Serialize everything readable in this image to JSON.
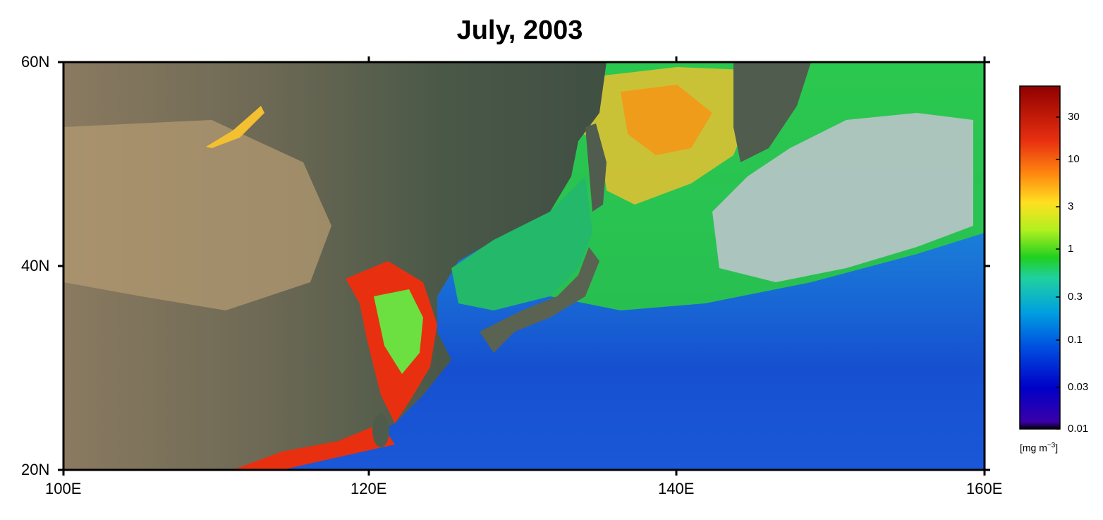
{
  "title": "July, 2003",
  "axes": {
    "lat_labels": [
      "60N",
      "40N",
      "20N"
    ],
    "lon_labels": [
      "100E",
      "120E",
      "140E",
      "160E"
    ],
    "lat_range": [
      20,
      60
    ],
    "lon_range": [
      100,
      160
    ]
  },
  "colorbar": {
    "ticks": [
      "30",
      "10",
      "3",
      "1",
      "0.3",
      "0.1",
      "0.03",
      "0.01"
    ],
    "unit_prefix": "[mg m",
    "unit_exponent": "−3",
    "unit_suffix": "]",
    "scale": "log",
    "range": [
      0.01,
      60
    ],
    "colors": [
      "#000000",
      "#3a00a8",
      "#0000c8",
      "#0050e0",
      "#00a0e0",
      "#20d0a0",
      "#20d020",
      "#b0f020",
      "#ffe020",
      "#ff8c10",
      "#e83010",
      "#900000"
    ]
  },
  "colors": {
    "land": "#4b5a4a",
    "land_arid": "#b39a72",
    "open_ocean": "#1e4fc4",
    "coastal_high": "#e83010",
    "mid": "#2ccf3a",
    "cloud": "#c8c8d0"
  }
}
